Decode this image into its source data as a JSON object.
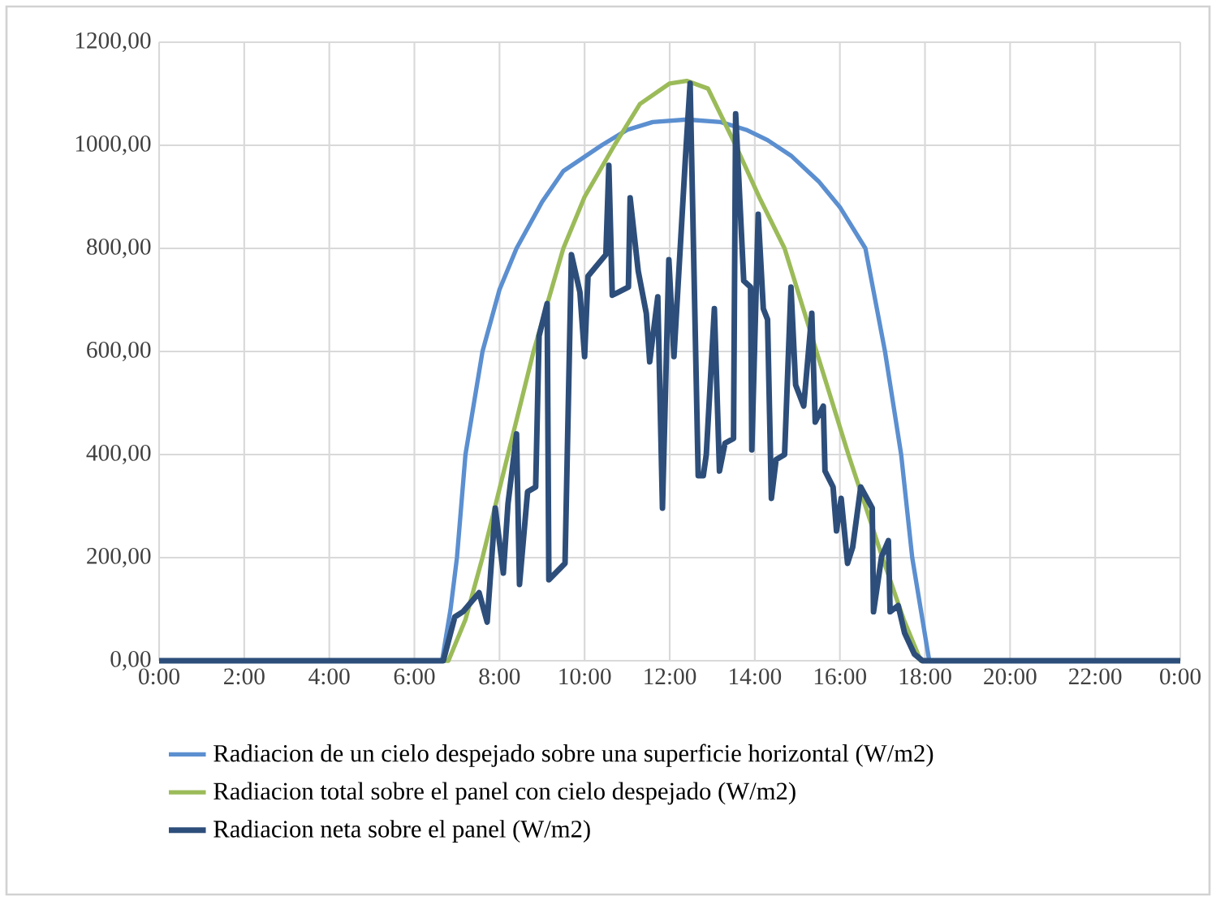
{
  "chart_data": {
    "type": "line",
    "xlim": [
      0,
      24
    ],
    "ylim": [
      0,
      1200
    ],
    "xticks": [
      {
        "value": 0,
        "label": "0:00"
      },
      {
        "value": 2,
        "label": "2:00"
      },
      {
        "value": 4,
        "label": "4:00"
      },
      {
        "value": 6,
        "label": "6:00"
      },
      {
        "value": 8,
        "label": "8:00"
      },
      {
        "value": 10,
        "label": "10:00"
      },
      {
        "value": 12,
        "label": "12:00"
      },
      {
        "value": 14,
        "label": "14:00"
      },
      {
        "value": 16,
        "label": "16:00"
      },
      {
        "value": 18,
        "label": "18:00"
      },
      {
        "value": 20,
        "label": "20:00"
      },
      {
        "value": 22,
        "label": "22:00"
      },
      {
        "value": 24,
        "label": "0:00"
      }
    ],
    "yticks": [
      {
        "value": 0,
        "label": "0,00"
      },
      {
        "value": 200,
        "label": "200,00"
      },
      {
        "value": 400,
        "label": "400,00"
      },
      {
        "value": 600,
        "label": "600,00"
      },
      {
        "value": 800,
        "label": "800,00"
      },
      {
        "value": 1000,
        "label": "1000,00"
      },
      {
        "value": 1200,
        "label": "1200,00"
      }
    ],
    "grid": true,
    "legend": "bottom",
    "series": [
      {
        "name": "Radiacion de un cielo despejado sobre una superficie horizontal (W/m2)",
        "color": "#5b8fd0",
        "x": [
          0,
          6.65,
          6.85,
          7.0,
          7.2,
          7.6,
          8.0,
          8.4,
          9.0,
          9.5,
          10.4,
          11.0,
          11.6,
          12.4,
          13.2,
          13.8,
          14.3,
          14.85,
          15.5,
          16.0,
          16.6,
          17.06,
          17.44,
          17.7,
          17.9,
          18.1,
          24
        ],
        "values": [
          0,
          0,
          100,
          200,
          400,
          600,
          720,
          800,
          890,
          950,
          1000,
          1030,
          1045,
          1050,
          1045,
          1030,
          1010,
          980,
          930,
          880,
          800,
          600,
          400,
          200,
          100,
          0,
          0
        ]
      },
      {
        "name": "Radiacion total sobre el panel con cielo despejado (W/m2)",
        "color": "#9bbb59",
        "x": [
          0,
          6.8,
          7.2,
          7.6,
          8.2,
          8.8,
          9.5,
          10.0,
          10.7,
          11.3,
          12.0,
          12.4,
          12.9,
          13.55,
          14.1,
          14.7,
          15.45,
          16.2,
          17.0,
          17.5,
          17.9,
          24
        ],
        "values": [
          0,
          0,
          80,
          200,
          400,
          600,
          800,
          900,
          1000,
          1080,
          1120,
          1125,
          1110,
          1000,
          900,
          800,
          600,
          400,
          200,
          80,
          0,
          0
        ]
      },
      {
        "name": "Radiacion neta sobre el panel (W/m2)",
        "color": "#2d4e7a",
        "x": [
          0,
          6.68,
          6.95,
          7.14,
          7.52,
          7.71,
          7.9,
          8.09,
          8.2,
          8.4,
          8.47,
          8.66,
          8.85,
          8.93,
          9.12,
          9.16,
          9.54,
          9.69,
          9.89,
          10.0,
          10.08,
          10.5,
          10.57,
          10.65,
          11.03,
          11.07,
          11.26,
          11.45,
          11.53,
          11.72,
          11.83,
          11.98,
          12.1,
          12.37,
          12.48,
          12.67,
          12.79,
          12.86,
          13.05,
          13.17,
          13.3,
          13.5,
          13.55,
          13.74,
          13.9,
          13.93,
          14.08,
          14.2,
          14.3,
          14.39,
          14.5,
          14.7,
          14.85,
          14.96,
          15.15,
          15.34,
          15.42,
          15.61,
          15.65,
          15.84,
          15.92,
          16.03,
          16.18,
          16.3,
          16.49,
          16.76,
          16.79,
          16.98,
          17.14,
          17.18,
          17.37,
          17.52,
          17.75,
          17.94,
          24
        ],
        "values": [
          0,
          0,
          85,
          95,
          132,
          75,
          296,
          170,
          305,
          440,
          148,
          328,
          337,
          630,
          693,
          157,
          189,
          788,
          715,
          590,
          746,
          788,
          961,
          709,
          725,
          898,
          756,
          674,
          580,
          706,
          296,
          778,
          590,
          976,
          1120,
          359,
          359,
          400,
          683,
          368,
          422,
          431,
          1061,
          737,
          725,
          409,
          866,
          683,
          662,
          315,
          390,
          400,
          725,
          535,
          494,
          674,
          463,
          494,
          368,
          337,
          252,
          315,
          189,
          220,
          337,
          296,
          95,
          202,
          233,
          95,
          107,
          54,
          13,
          0,
          0
        ]
      }
    ]
  }
}
